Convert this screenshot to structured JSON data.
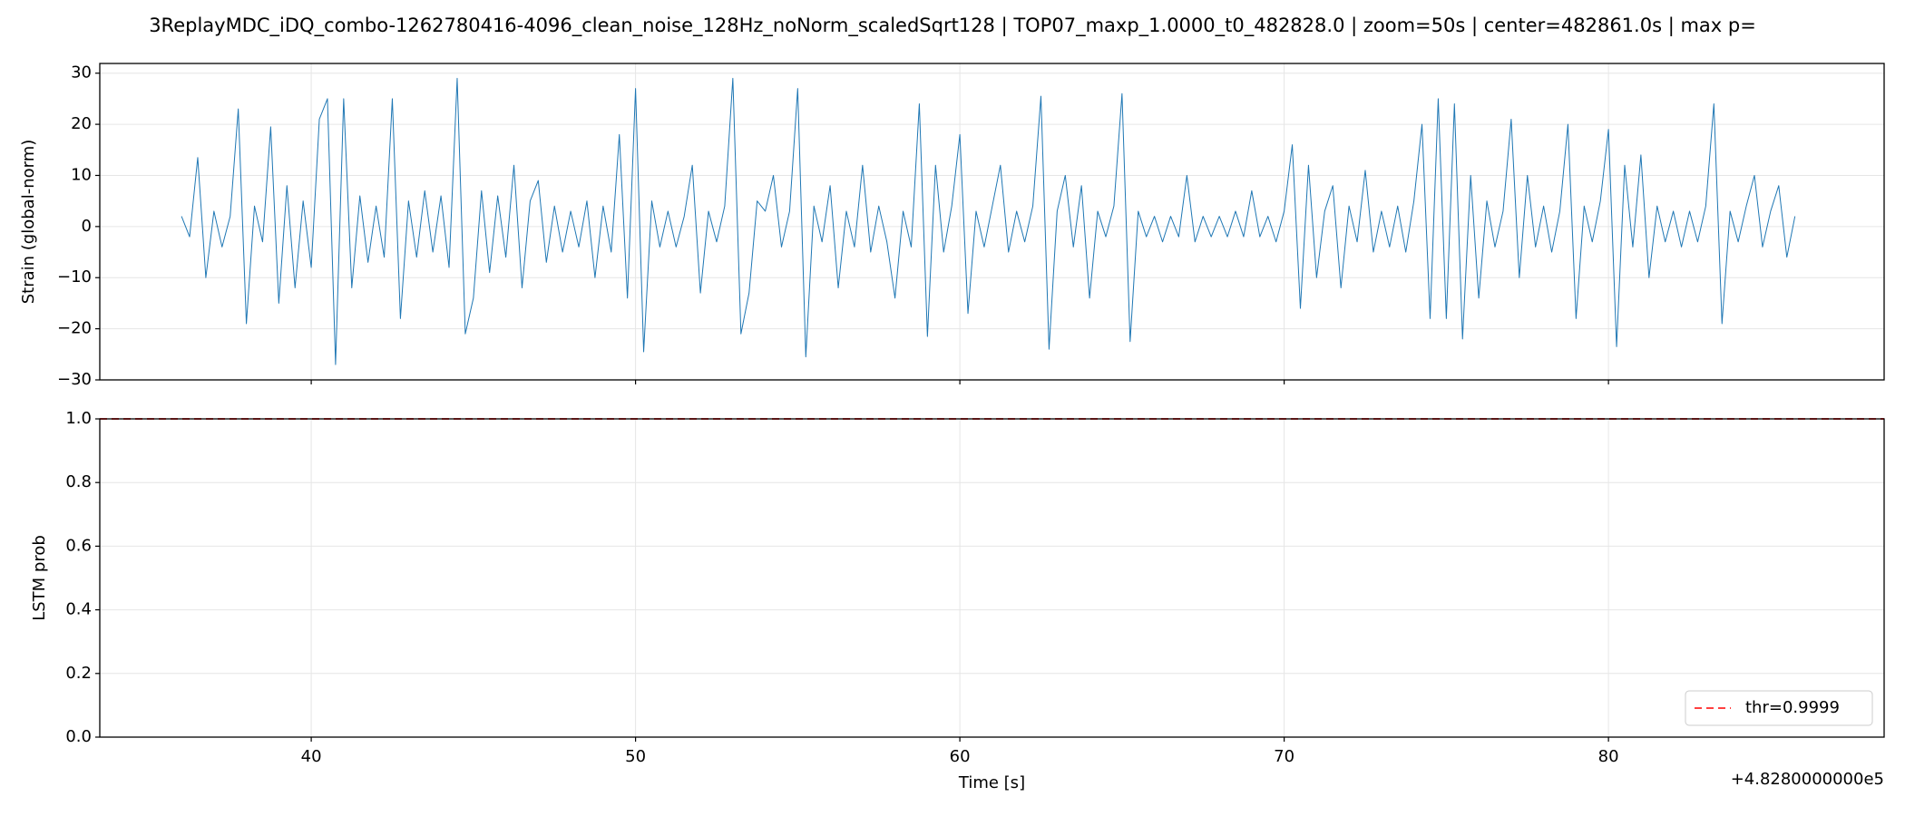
{
  "chart_data": [
    {
      "type": "line",
      "title": "3ReplayMDC_iDQ_combo-1262780416-4096_clean_noise_128Hz_noNorm_scaledSqrt128 | TOP07_maxp_1.0000_t0_482828.0 | zoom=50s | center=482861.0s | max p=",
      "ylabel": "Strain (global-norm)",
      "xlim": [
        33.48,
        88.5
      ],
      "xticks": [
        40,
        50,
        60,
        70,
        80
      ],
      "ylim": [
        -30,
        31.9
      ],
      "yticks": [
        {
          "value": -30,
          "label": "−30"
        },
        {
          "value": -20,
          "label": "−20"
        },
        {
          "value": -10,
          "label": "−10"
        },
        0,
        10,
        20,
        30
      ],
      "grid": true,
      "x": [
        36,
        36.25,
        36.5,
        36.75,
        37,
        37.25,
        37.5,
        37.75,
        38,
        38.25,
        38.5,
        38.75,
        39,
        39.25,
        39.5,
        39.75,
        40,
        40.25,
        40.5,
        40.75,
        41,
        41.25,
        41.5,
        41.75,
        42,
        42.25,
        42.5,
        42.75,
        43,
        43.25,
        43.5,
        43.75,
        44,
        44.25,
        44.5,
        44.75,
        45,
        45.25,
        45.5,
        45.75,
        46,
        46.25,
        46.5,
        46.75,
        47,
        47.25,
        47.5,
        47.75,
        48,
        48.25,
        48.5,
        48.75,
        49,
        49.25,
        49.5,
        49.75,
        50,
        50.25,
        50.5,
        50.75,
        51,
        51.25,
        51.5,
        51.75,
        52,
        52.25,
        52.5,
        52.75,
        53,
        53.25,
        53.5,
        53.75,
        54,
        54.25,
        54.5,
        54.75,
        55,
        55.25,
        55.5,
        55.75,
        56,
        56.25,
        56.5,
        56.75,
        57,
        57.25,
        57.5,
        57.75,
        58,
        58.25,
        58.5,
        58.75,
        59,
        59.25,
        59.5,
        59.75,
        60,
        60.25,
        60.5,
        60.75,
        61,
        61.25,
        61.5,
        61.75,
        62,
        62.25,
        62.5,
        62.75,
        63,
        63.25,
        63.5,
        63.75,
        64,
        64.25,
        64.5,
        64.75,
        65,
        65.25,
        65.5,
        65.75,
        66,
        66.25,
        66.5,
        66.75,
        67,
        67.25,
        67.5,
        67.75,
        68,
        68.25,
        68.5,
        68.75,
        69,
        69.25,
        69.5,
        69.75,
        70,
        70.25,
        70.5,
        70.75,
        71,
        71.25,
        71.5,
        71.75,
        72,
        72.25,
        72.5,
        72.75,
        73,
        73.25,
        73.5,
        73.75,
        74,
        74.25,
        74.5,
        74.75,
        75,
        75.25,
        75.5,
        75.75,
        76,
        76.25,
        76.5,
        76.75,
        77,
        77.25,
        77.5,
        77.75,
        78,
        78.25,
        78.5,
        78.75,
        79,
        79.25,
        79.5,
        79.75,
        80,
        80.25,
        80.5,
        80.75,
        81,
        81.25,
        81.5,
        81.75,
        82,
        82.25,
        82.5,
        82.75,
        83,
        83.25,
        83.5,
        83.75,
        84,
        84.25,
        84.5,
        84.75,
        85,
        85.25,
        85.5,
        85.75
      ],
      "series": [
        {
          "color": "#1f77b4",
          "values": [
            2,
            -2,
            13.5,
            -10,
            3,
            -4,
            2,
            23,
            -19,
            4,
            -3,
            19.5,
            -15,
            8,
            -12,
            5,
            -8,
            21,
            25,
            -27,
            25,
            -12,
            6,
            -7,
            4,
            -6,
            25,
            -18,
            5,
            -6,
            7,
            -5,
            6,
            -8,
            29,
            -21,
            -14,
            7,
            -9,
            6,
            -6,
            12,
            -12,
            5,
            9,
            -7,
            4,
            -5,
            3,
            -4,
            5,
            -10,
            4,
            -5,
            18,
            -14,
            27,
            -24.5,
            5,
            -4,
            3,
            -4,
            2,
            12,
            -13,
            3,
            -3,
            4,
            29,
            -21,
            -13,
            5,
            3,
            10,
            -4,
            3,
            27,
            -25.5,
            4,
            -3,
            8,
            -12,
            3,
            -4,
            12,
            -5,
            4,
            -3,
            -14,
            3,
            -4,
            24,
            -21.5,
            12,
            -5,
            4,
            18,
            -17,
            3,
            -4,
            4,
            12,
            -5,
            3,
            -3,
            4,
            25.5,
            -24,
            3,
            10,
            -4,
            8,
            -14,
            3,
            -2,
            4,
            26,
            -22.5,
            3,
            -2,
            2,
            -3,
            2,
            -2,
            10,
            -3,
            2,
            -2,
            2,
            -2,
            3,
            -2,
            7,
            -2,
            2,
            -3,
            3,
            16,
            -16,
            12,
            -10,
            3,
            8,
            -12,
            4,
            -3,
            11,
            -5,
            3,
            -4,
            4,
            -5,
            5,
            20,
            -18,
            25,
            -18,
            24,
            -22,
            10,
            -14,
            5,
            -4,
            3,
            21,
            -10,
            10,
            -4,
            4,
            -5,
            3,
            20,
            -18,
            4,
            -3,
            5,
            19,
            -23.5,
            12,
            -4,
            14,
            -10,
            4,
            -3,
            3,
            -4,
            3,
            -3,
            4,
            24,
            -19,
            3,
            -3,
            4,
            10,
            -4,
            3,
            8,
            -6,
            2
          ]
        }
      ]
    },
    {
      "type": "line",
      "ylabel": "LSTM prob",
      "xlabel": "Time [s]",
      "x_offset_label": "+4.8280000000e5",
      "xlim": [
        33.48,
        88.5
      ],
      "xticks": [
        40,
        50,
        60,
        70,
        80
      ],
      "ylim": [
        0,
        1
      ],
      "yticks": [
        {
          "value": 0,
          "label": "0.0"
        },
        {
          "value": 0.2,
          "label": "0.2"
        },
        {
          "value": 0.4,
          "label": "0.4"
        },
        {
          "value": 0.6,
          "label": "0.6"
        },
        {
          "value": 0.8,
          "label": "0.8"
        },
        {
          "value": 1,
          "label": "1.0"
        }
      ],
      "grid": true,
      "hlines": [
        {
          "value": 0.9999,
          "label": "thr=0.9999",
          "color": "#ff0000"
        }
      ],
      "legend": "lower right"
    }
  ]
}
